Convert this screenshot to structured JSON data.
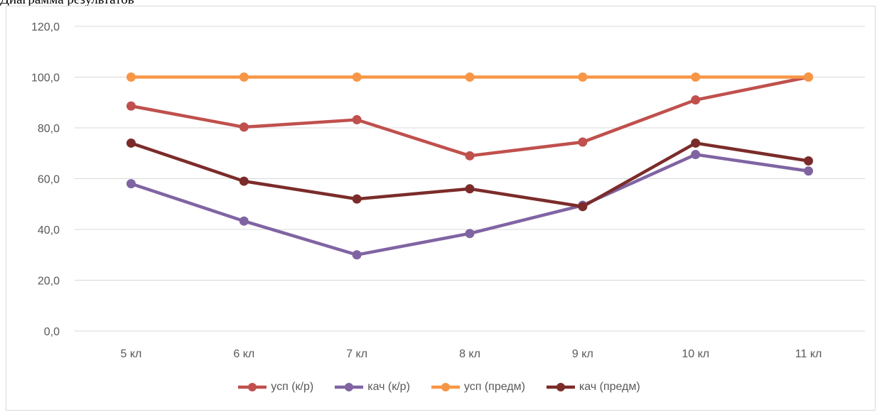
{
  "top_text": "Диаграмма результатов",
  "chart_data": {
    "type": "line",
    "title": "",
    "xlabel": "",
    "ylabel": "",
    "categories": [
      "5 кл",
      "6 кл",
      "7 кл",
      "8 кл",
      "9 кл",
      "10 кл",
      "11 кл"
    ],
    "y_ticks": [
      "0,0",
      "20,0",
      "40,0",
      "60,0",
      "80,0",
      "100,0",
      "120,0"
    ],
    "ylim": [
      0,
      120
    ],
    "grid": true,
    "legend_position": "bottom",
    "series": [
      {
        "name": "усп (к/р)",
        "color": "#c0504d",
        "values": [
          88.6,
          80.3,
          83.2,
          69.0,
          74.4,
          91.0,
          100.0
        ]
      },
      {
        "name": "кач (к/р)",
        "color": "#8064a2",
        "values": [
          58.0,
          43.3,
          30.0,
          38.4,
          49.5,
          69.5,
          63.0
        ]
      },
      {
        "name": "усп (предм)",
        "color": "#f79646",
        "values": [
          100.0,
          100.0,
          100.0,
          100.0,
          100.0,
          100.0,
          100.0
        ]
      },
      {
        "name": "кач (предм)",
        "color": "#7b2c2a",
        "values": [
          74.0,
          59.0,
          52.0,
          56.0,
          49.0,
          74.0,
          67.0
        ]
      }
    ]
  }
}
